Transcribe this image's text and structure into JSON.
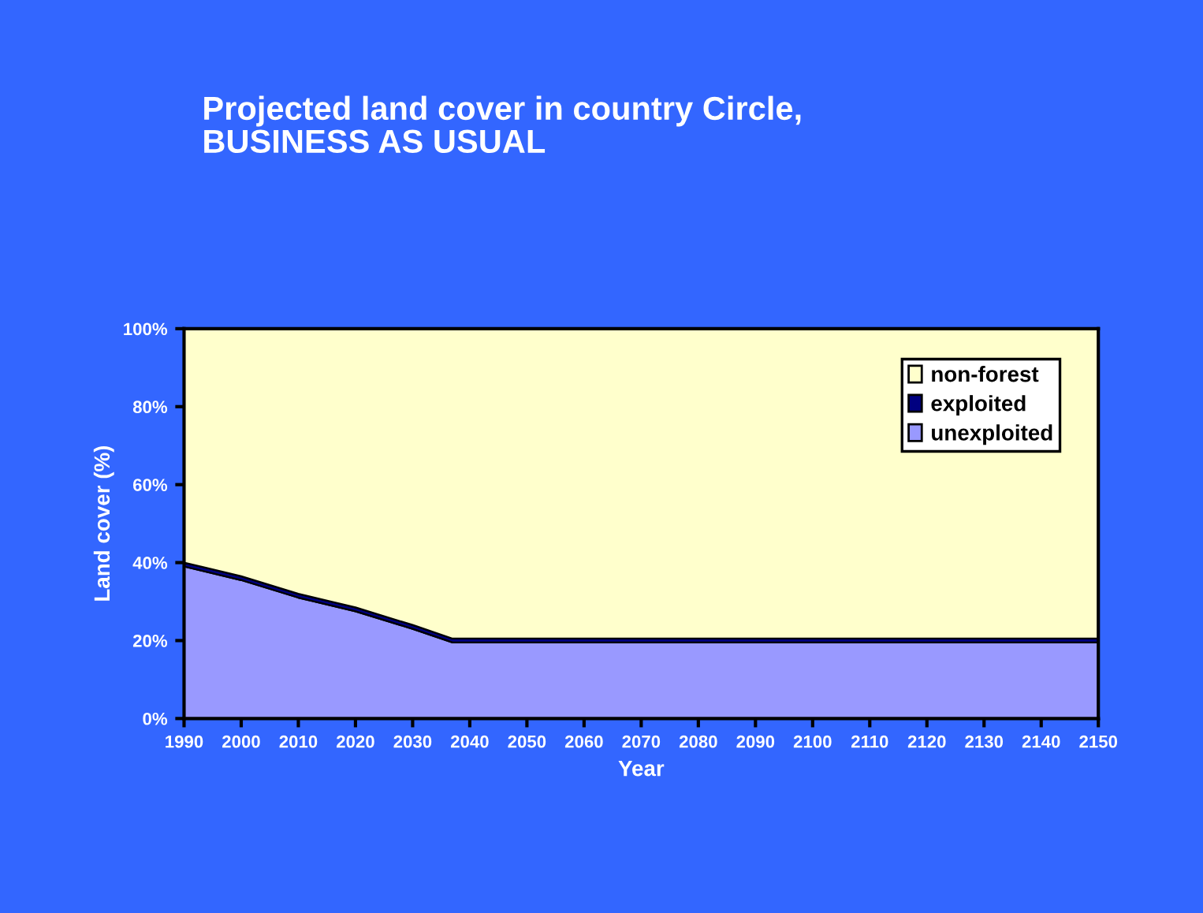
{
  "chart_data": {
    "type": "area",
    "stacked": true,
    "title": "Projected land cover in country Circle,\nBUSINESS AS USUAL",
    "xlabel": "Year",
    "ylabel": "Land cover (%)",
    "x": [
      1990,
      2000,
      2010,
      2020,
      2030,
      2037,
      2040,
      2050,
      2060,
      2070,
      2080,
      2090,
      2100,
      2110,
      2120,
      2130,
      2140,
      2150
    ],
    "series": [
      {
        "name": "unexploited",
        "color": "#9999ff",
        "values": [
          39,
          35.5,
          31,
          27.5,
          23,
          19.5,
          19.5,
          19.5,
          19.5,
          19.5,
          19.5,
          19.5,
          19.5,
          19.5,
          19.5,
          19.5,
          19.5,
          19.5
        ]
      },
      {
        "name": "exploited",
        "color": "#000080",
        "values": [
          1,
          1,
          1,
          1,
          1,
          1,
          1,
          1,
          1,
          1,
          1,
          1,
          1,
          1,
          1,
          1,
          1,
          1
        ]
      },
      {
        "name": "non-forest",
        "color": "#ffffcc",
        "values": [
          60,
          63.5,
          68,
          71.5,
          76,
          79.5,
          79.5,
          79.5,
          79.5,
          79.5,
          79.5,
          79.5,
          79.5,
          79.5,
          79.5,
          79.5,
          79.5,
          79.5
        ]
      }
    ],
    "xlim": [
      1990,
      2150
    ],
    "xticks": [
      1990,
      2000,
      2010,
      2020,
      2030,
      2040,
      2050,
      2060,
      2070,
      2080,
      2090,
      2100,
      2110,
      2120,
      2130,
      2140,
      2150
    ],
    "ylim": [
      0,
      100
    ],
    "yticks": [
      {
        "value": 0,
        "label": "0%"
      },
      {
        "value": 20,
        "label": "20%"
      },
      {
        "value": 40,
        "label": "40%"
      },
      {
        "value": 60,
        "label": "60%"
      },
      {
        "value": 80,
        "label": "80%"
      },
      {
        "value": 100,
        "label": "100%"
      }
    ],
    "legend": "top right",
    "grid": false
  }
}
